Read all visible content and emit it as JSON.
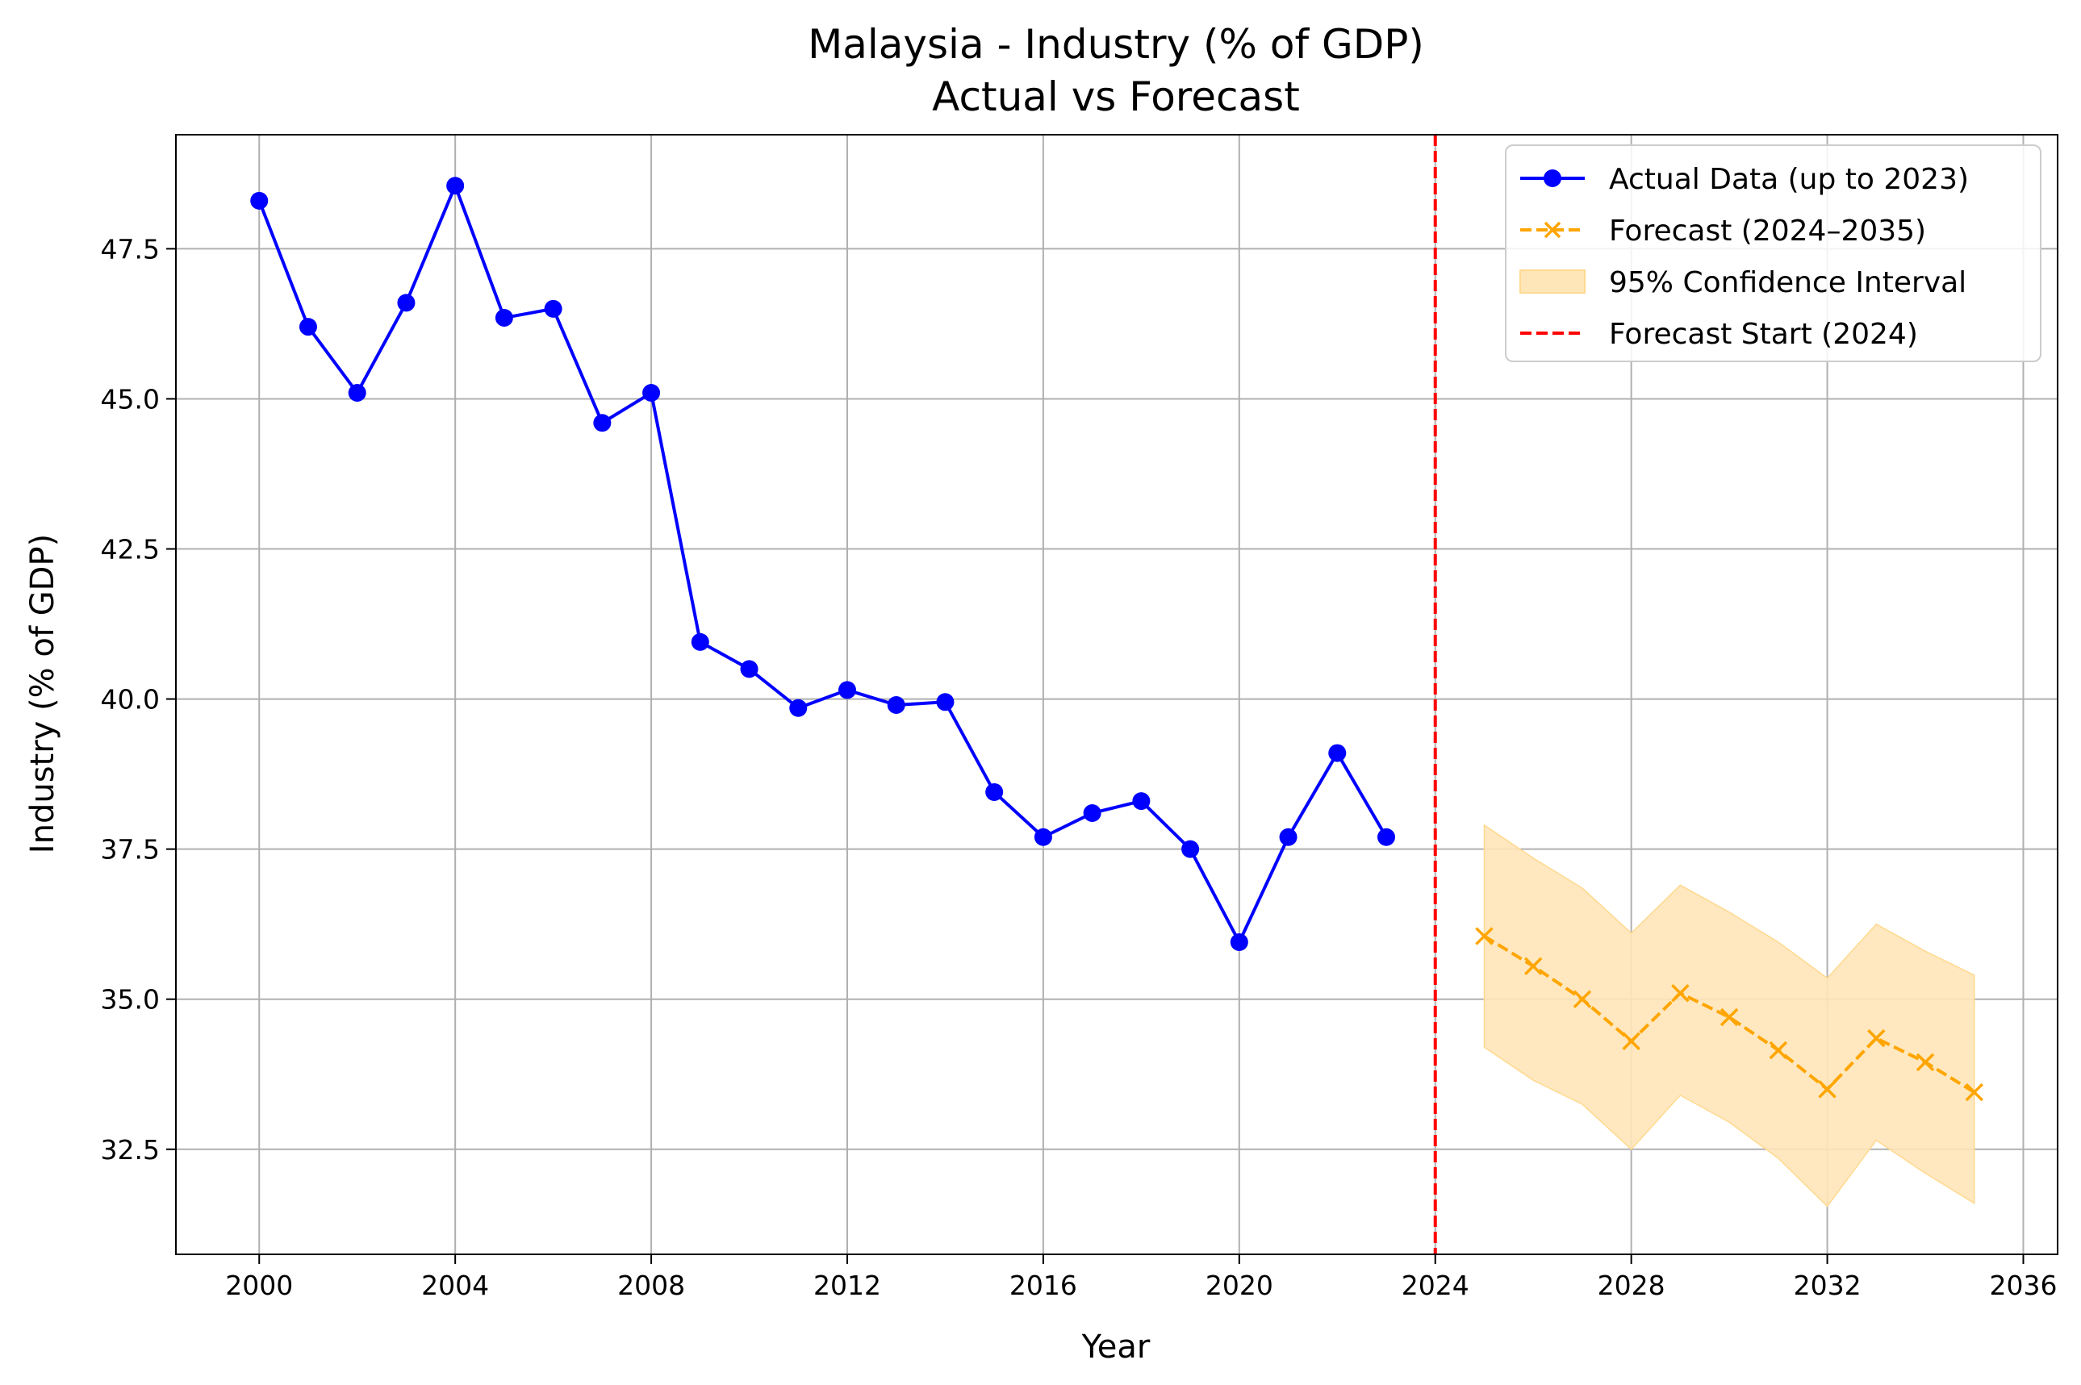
{
  "chart_data": {
    "type": "line",
    "title": "Malaysia - Industry (% of GDP)",
    "subtitle": "Actual vs Forecast",
    "xlabel": "Year",
    "ylabel": "Industry (% of GDP)",
    "xlim": [
      1998.3,
      2036.7
    ],
    "ylim": [
      30.75,
      49.4
    ],
    "xticks": [
      2000,
      2004,
      2008,
      2012,
      2016,
      2020,
      2024,
      2028,
      2032,
      2036
    ],
    "yticks": [
      32.5,
      35.0,
      37.5,
      40.0,
      42.5,
      45.0,
      47.5
    ],
    "ytick_labels": [
      "32.5",
      "35.0",
      "37.5",
      "40.0",
      "42.5",
      "45.0",
      "47.5"
    ],
    "grid": true,
    "legend_position": "top-right",
    "series": [
      {
        "name": "Actual Data (up to 2023)",
        "style": "solid line with circle markers",
        "color": "#0000ff",
        "x": [
          2000,
          2001,
          2002,
          2003,
          2004,
          2005,
          2006,
          2007,
          2008,
          2009,
          2010,
          2011,
          2012,
          2013,
          2014,
          2015,
          2016,
          2017,
          2018,
          2019,
          2020,
          2021,
          2022,
          2023
        ],
        "y": [
          48.3,
          46.2,
          45.1,
          46.6,
          48.55,
          46.35,
          46.5,
          44.6,
          45.1,
          40.95,
          40.5,
          39.85,
          40.15,
          39.9,
          39.95,
          38.45,
          37.7,
          38.1,
          38.3,
          37.5,
          35.95,
          37.7,
          39.1,
          37.7
        ]
      },
      {
        "name": "Forecast (2024–2035)",
        "style": "dashed line with x markers",
        "color": "#ffa500",
        "x": [
          2025,
          2026,
          2027,
          2028,
          2029,
          2030,
          2031,
          2032,
          2033,
          2034,
          2035
        ],
        "y": [
          36.05,
          35.55,
          35.0,
          34.3,
          35.1,
          34.7,
          34.15,
          33.5,
          34.35,
          33.95,
          33.45
        ]
      }
    ],
    "confidence_interval": {
      "name": "95% Confidence Interval",
      "color": "#ffe6b8",
      "x": [
        2025,
        2026,
        2027,
        2028,
        2029,
        2030,
        2031,
        2032,
        2033,
        2034,
        2035
      ],
      "lower": [
        34.2,
        33.65,
        33.25,
        32.5,
        33.4,
        32.95,
        32.35,
        31.55,
        32.65,
        32.1,
        31.6
      ],
      "upper": [
        37.9,
        37.35,
        36.85,
        36.1,
        36.9,
        36.45,
        35.95,
        35.35,
        36.25,
        35.8,
        35.4
      ]
    },
    "forecast_start": {
      "name": "Forecast Start (2024)",
      "x": 2024,
      "color": "#ff0000"
    }
  }
}
